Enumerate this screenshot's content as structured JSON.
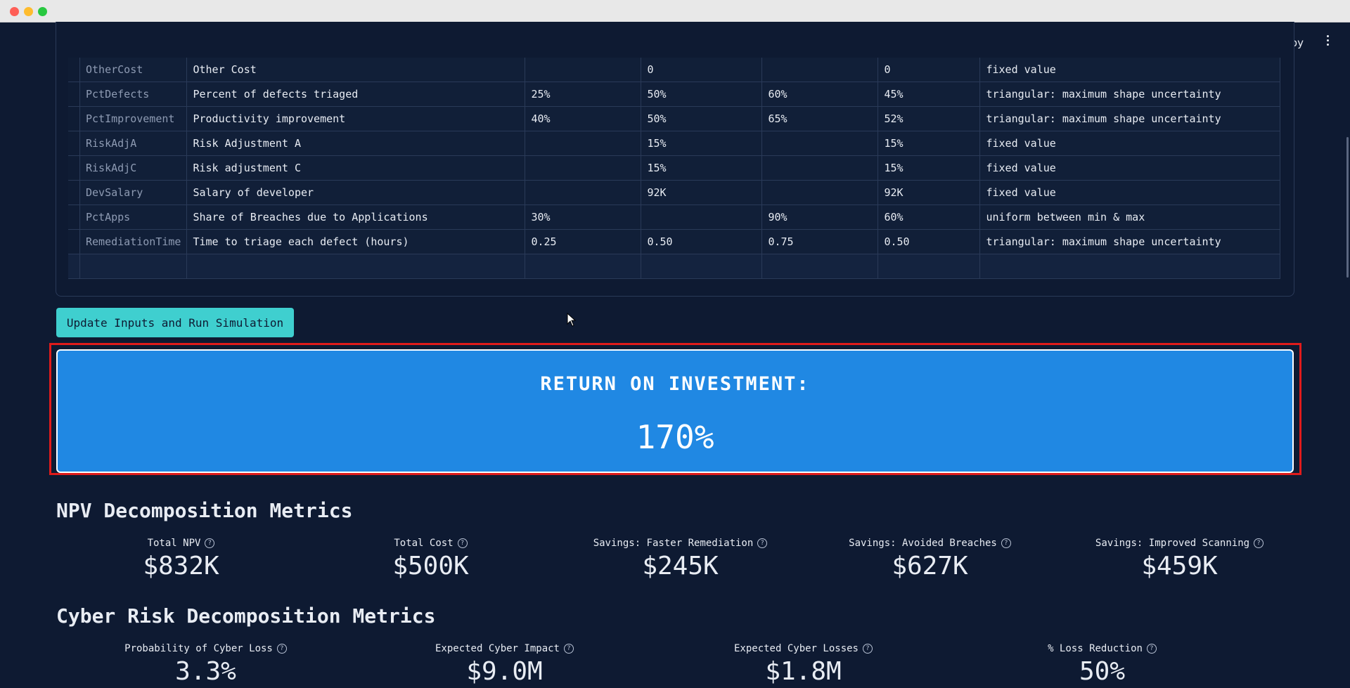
{
  "header": {
    "deploy_label": "Deploy"
  },
  "inputs_table": {
    "rows": [
      {
        "name": "OtherCost",
        "description": "Other Cost",
        "min": "",
        "mode": "0",
        "max": "",
        "mean": "0",
        "distribution": "fixed value"
      },
      {
        "name": "PctDefects",
        "description": "Percent of defects triaged",
        "min": "25%",
        "mode": "50%",
        "max": "60%",
        "mean": "45%",
        "distribution": "triangular: maximum shape uncertainty"
      },
      {
        "name": "PctImprovement",
        "description": "Productivity improvement",
        "min": "40%",
        "mode": "50%",
        "max": "65%",
        "mean": "52%",
        "distribution": "triangular: maximum shape uncertainty"
      },
      {
        "name": "RiskAdjA",
        "description": "Risk Adjustment A",
        "min": "",
        "mode": "15%",
        "max": "",
        "mean": "15%",
        "distribution": "fixed value"
      },
      {
        "name": "RiskAdjC",
        "description": "Risk adjustment C",
        "min": "",
        "mode": "15%",
        "max": "",
        "mean": "15%",
        "distribution": "fixed value"
      },
      {
        "name": "DevSalary",
        "description": "Salary of developer",
        "min": "",
        "mode": "92K",
        "max": "",
        "mean": "92K",
        "distribution": "fixed value"
      },
      {
        "name": "PctApps",
        "description": "Share of Breaches due to Applications",
        "min": "30%",
        "mode": "",
        "max": "90%",
        "mean": "60%",
        "distribution": "uniform between min & max"
      },
      {
        "name": "RemediationTime",
        "description": "Time to triage each defect (hours)",
        "min": "0.25",
        "mode": "0.50",
        "max": "0.75",
        "mean": "0.50",
        "distribution": "triangular: maximum shape uncertainty"
      },
      {
        "name": "",
        "description": "",
        "min": "",
        "mode": "",
        "max": "",
        "mean": "",
        "distribution": ""
      }
    ]
  },
  "run_button_label": "Update Inputs and Run Simulation",
  "roi": {
    "title": "RETURN ON INVESTMENT:",
    "value": "170%"
  },
  "npv_section": {
    "title": "NPV Decomposition Metrics",
    "metrics": [
      {
        "label": "Total NPV",
        "value": "$832K"
      },
      {
        "label": "Total Cost",
        "value": "$500K"
      },
      {
        "label": "Savings: Faster Remediation",
        "value": "$245K"
      },
      {
        "label": "Savings: Avoided Breaches",
        "value": "$627K"
      },
      {
        "label": "Savings: Improved Scanning",
        "value": "$459K"
      }
    ]
  },
  "cyber_section": {
    "title": "Cyber Risk Decomposition Metrics",
    "metrics": [
      {
        "label": "Probability of Cyber Loss",
        "value": "3.3%"
      },
      {
        "label": "Expected Cyber Impact",
        "value": "$9.0M"
      },
      {
        "label": "Expected Cyber Losses",
        "value": "$1.8M"
      },
      {
        "label": "% Loss Reduction",
        "value": "50%"
      }
    ]
  },
  "colors": {
    "background": "#0e1a32",
    "button": "#3fcfcf",
    "roi_box": "#2088e3",
    "highlight_border": "#e01b1b"
  }
}
